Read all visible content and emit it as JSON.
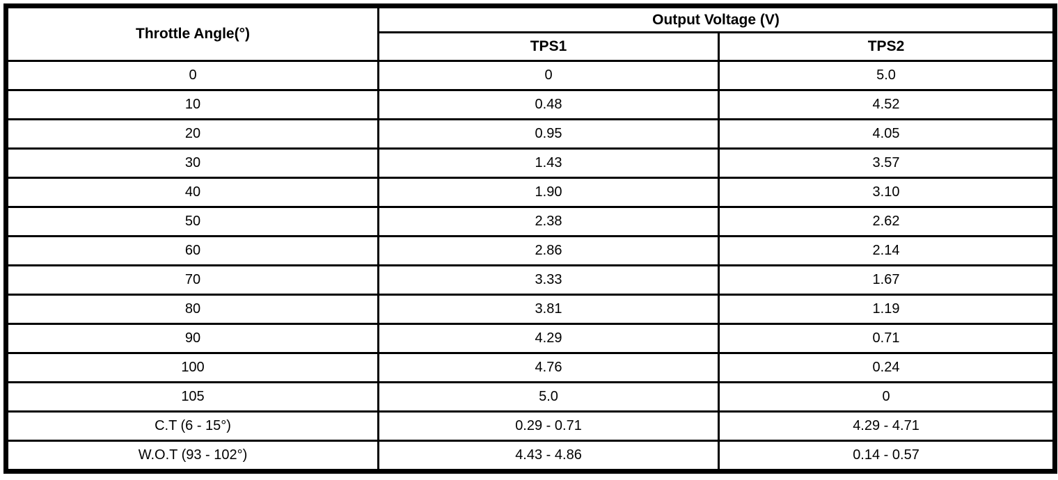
{
  "table": {
    "col1_header": "Throttle Angle(°)",
    "group_header": "Output Voltage (V)",
    "sub_headers": [
      "TPS1",
      "TPS2"
    ],
    "rows": [
      {
        "angle": "0",
        "tps1": "0",
        "tps2": "5.0"
      },
      {
        "angle": "10",
        "tps1": "0.48",
        "tps2": "4.52"
      },
      {
        "angle": "20",
        "tps1": "0.95",
        "tps2": "4.05"
      },
      {
        "angle": "30",
        "tps1": "1.43",
        "tps2": "3.57"
      },
      {
        "angle": "40",
        "tps1": "1.90",
        "tps2": "3.10"
      },
      {
        "angle": "50",
        "tps1": "2.38",
        "tps2": "2.62"
      },
      {
        "angle": "60",
        "tps1": "2.86",
        "tps2": "2.14"
      },
      {
        "angle": "70",
        "tps1": "3.33",
        "tps2": "1.67"
      },
      {
        "angle": "80",
        "tps1": "3.81",
        "tps2": "1.19"
      },
      {
        "angle": "90",
        "tps1": "4.29",
        "tps2": "0.71"
      },
      {
        "angle": "100",
        "tps1": "4.76",
        "tps2": "0.24"
      },
      {
        "angle": "105",
        "tps1": "5.0",
        "tps2": "0"
      },
      {
        "angle": "C.T (6 - 15°)",
        "tps1": "0.29 - 0.71",
        "tps2": "4.29 - 4.71"
      },
      {
        "angle": "W.O.T (93 - 102°)",
        "tps1": "4.43 - 4.86",
        "tps2": "0.14 - 0.57"
      }
    ]
  },
  "colors": {
    "border": "#000000",
    "background": "#ffffff",
    "text": "#000000"
  }
}
